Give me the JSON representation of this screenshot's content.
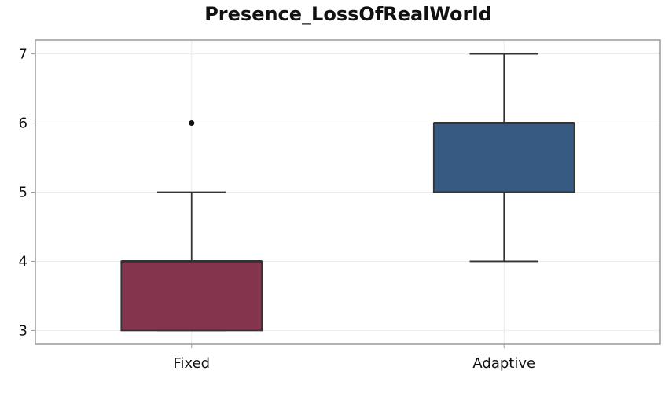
{
  "chart_data": {
    "type": "box",
    "title": "Presence_LossOfRealWorld",
    "xlabel": "",
    "ylabel": "",
    "ylim": [
      2.8,
      7.2
    ],
    "yticks": [
      3,
      4,
      5,
      6,
      7
    ],
    "grid": true,
    "categories": [
      "Fixed",
      "Adaptive"
    ],
    "boxes": [
      {
        "category": "Fixed",
        "whisker_low": 3,
        "q1": 3,
        "median": 4,
        "q3": 4,
        "whisker_high": 5,
        "outliers": [
          6
        ],
        "color": "#85344d"
      },
      {
        "category": "Adaptive",
        "whisker_low": 4,
        "q1": 5,
        "median": 6,
        "q3": 6,
        "whisker_high": 7,
        "outliers": [],
        "color": "#375a83"
      }
    ]
  }
}
